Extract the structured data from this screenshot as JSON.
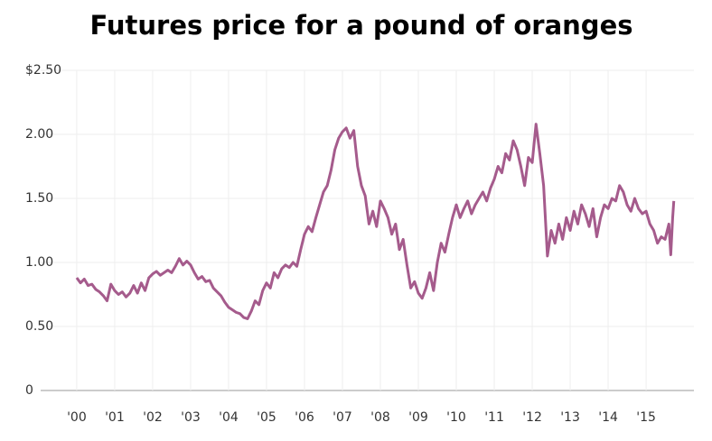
{
  "chart_data": {
    "type": "line",
    "title": "Futures price for a pound of oranges",
    "x": [
      2000.0,
      2000.1,
      2000.2,
      2000.3,
      2000.4,
      2000.5,
      2000.6,
      2000.7,
      2000.8,
      2000.9,
      2001.0,
      2001.1,
      2001.2,
      2001.3,
      2001.4,
      2001.5,
      2001.6,
      2001.7,
      2001.8,
      2001.9,
      2002.0,
      2002.1,
      2002.2,
      2002.3,
      2002.4,
      2002.5,
      2002.6,
      2002.7,
      2002.8,
      2002.9,
      2003.0,
      2003.1,
      2003.2,
      2003.3,
      2003.4,
      2003.5,
      2003.6,
      2003.7,
      2003.8,
      2003.9,
      2004.0,
      2004.1,
      2004.2,
      2004.3,
      2004.4,
      2004.5,
      2004.6,
      2004.7,
      2004.8,
      2004.9,
      2005.0,
      2005.1,
      2005.2,
      2005.3,
      2005.4,
      2005.5,
      2005.6,
      2005.7,
      2005.8,
      2005.9,
      2006.0,
      2006.1,
      2006.2,
      2006.3,
      2006.4,
      2006.5,
      2006.6,
      2006.7,
      2006.8,
      2006.9,
      2007.0,
      2007.1,
      2007.2,
      2007.3,
      2007.4,
      2007.5,
      2007.6,
      2007.7,
      2007.8,
      2007.9,
      2008.0,
      2008.1,
      2008.2,
      2008.3,
      2008.4,
      2008.5,
      2008.6,
      2008.7,
      2008.8,
      2008.9,
      2009.0,
      2009.1,
      2009.2,
      2009.3,
      2009.4,
      2009.5,
      2009.6,
      2009.7,
      2009.8,
      2009.9,
      2010.0,
      2010.1,
      2010.2,
      2010.3,
      2010.4,
      2010.5,
      2010.6,
      2010.7,
      2010.8,
      2010.9,
      2011.0,
      2011.1,
      2011.2,
      2011.3,
      2011.4,
      2011.5,
      2011.6,
      2011.7,
      2011.8,
      2011.9,
      2012.0,
      2012.1,
      2012.2,
      2012.3,
      2012.4,
      2012.5,
      2012.6,
      2012.7,
      2012.8,
      2012.9,
      2013.0,
      2013.1,
      2013.2,
      2013.3,
      2013.4,
      2013.5,
      2013.6,
      2013.7,
      2013.8,
      2013.9,
      2014.0,
      2014.1,
      2014.2,
      2014.3,
      2014.4,
      2014.5,
      2014.6,
      2014.7,
      2014.8,
      2014.9,
      2015.0,
      2015.1,
      2015.2,
      2015.3,
      2015.4,
      2015.5,
      2015.6,
      2015.65,
      2015.7,
      2015.73
    ],
    "series": [
      {
        "color": "#a55b8c",
        "values": [
          0.88,
          0.84,
          0.87,
          0.82,
          0.83,
          0.79,
          0.77,
          0.74,
          0.7,
          0.83,
          0.78,
          0.75,
          0.77,
          0.73,
          0.76,
          0.82,
          0.76,
          0.84,
          0.78,
          0.88,
          0.91,
          0.93,
          0.9,
          0.92,
          0.94,
          0.92,
          0.97,
          1.03,
          0.98,
          1.01,
          0.98,
          0.92,
          0.87,
          0.89,
          0.85,
          0.86,
          0.8,
          0.77,
          0.74,
          0.69,
          0.65,
          0.63,
          0.61,
          0.6,
          0.57,
          0.56,
          0.62,
          0.7,
          0.67,
          0.78,
          0.84,
          0.8,
          0.92,
          0.88,
          0.95,
          0.98,
          0.96,
          1.0,
          0.97,
          1.1,
          1.22,
          1.28,
          1.24,
          1.35,
          1.45,
          1.55,
          1.6,
          1.72,
          1.88,
          1.97,
          2.02,
          2.05,
          1.97,
          2.03,
          1.75,
          1.6,
          1.52,
          1.3,
          1.4,
          1.28,
          1.48,
          1.42,
          1.35,
          1.22,
          1.3,
          1.1,
          1.18,
          0.98,
          0.8,
          0.85,
          0.76,
          0.72,
          0.8,
          0.92,
          0.78,
          1.0,
          1.15,
          1.08,
          1.22,
          1.35,
          1.45,
          1.35,
          1.42,
          1.48,
          1.38,
          1.45,
          1.5,
          1.55,
          1.48,
          1.58,
          1.65,
          1.75,
          1.7,
          1.85,
          1.8,
          1.95,
          1.88,
          1.75,
          1.6,
          1.82,
          1.78,
          2.08,
          1.85,
          1.6,
          1.05,
          1.25,
          1.15,
          1.3,
          1.18,
          1.35,
          1.25,
          1.4,
          1.3,
          1.45,
          1.38,
          1.28,
          1.42,
          1.2,
          1.35,
          1.45,
          1.42,
          1.5,
          1.48,
          1.6,
          1.55,
          1.45,
          1.4,
          1.5,
          1.42,
          1.38,
          1.4,
          1.3,
          1.25,
          1.15,
          1.2,
          1.18,
          1.3,
          1.06,
          1.35,
          1.48
        ]
      }
    ],
    "xlim": [
      1999.05,
      2016.26
    ],
    "xticks": [
      {
        "value": 2000,
        "label": "'00"
      },
      {
        "value": 2001,
        "label": "'01"
      },
      {
        "value": 2002,
        "label": "'02"
      },
      {
        "value": 2003,
        "label": "'03"
      },
      {
        "value": 2004,
        "label": "'04"
      },
      {
        "value": 2005,
        "label": "'05"
      },
      {
        "value": 2006,
        "label": "'06"
      },
      {
        "value": 2007,
        "label": "'07"
      },
      {
        "value": 2008,
        "label": "'08"
      },
      {
        "value": 2009,
        "label": "'09"
      },
      {
        "value": 2010,
        "label": "'10"
      },
      {
        "value": 2011,
        "label": "'11"
      },
      {
        "value": 2012,
        "label": "'12"
      },
      {
        "value": 2013,
        "label": "'13"
      },
      {
        "value": 2014,
        "label": "'14"
      },
      {
        "value": 2015,
        "label": "'15"
      }
    ],
    "ylim": [
      0,
      2.5
    ],
    "yticks": [
      0,
      {
        "value": 0.5,
        "label": "0.50"
      },
      {
        "value": 1,
        "label": "1.00"
      },
      {
        "value": 1.5,
        "label": "1.50"
      },
      {
        "value": 2,
        "label": "2.00"
      },
      {
        "value": 2.5,
        "label": "$2.50"
      }
    ],
    "grid": true
  }
}
